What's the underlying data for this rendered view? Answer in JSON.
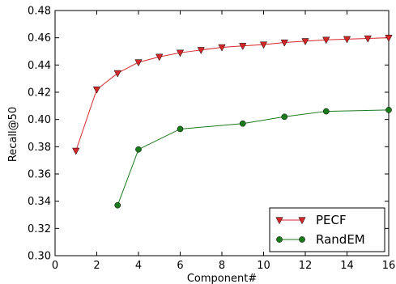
{
  "chart_data": {
    "type": "line",
    "title": "",
    "xlabel": "Component#",
    "ylabel": "Recall@50",
    "xlim": [
      0,
      16
    ],
    "ylim": [
      0.3,
      0.48
    ],
    "xticks": [
      0,
      2,
      4,
      6,
      8,
      10,
      12,
      14,
      16
    ],
    "yticks": [
      0.3,
      0.32,
      0.34,
      0.36,
      0.38,
      0.4,
      0.42,
      0.44,
      0.46,
      0.48
    ],
    "xtick_labels": [
      "0",
      "2",
      "4",
      "6",
      "8",
      "10",
      "12",
      "14",
      "16"
    ],
    "ytick_labels": [
      "0.30",
      "0.32",
      "0.34",
      "0.36",
      "0.38",
      "0.40",
      "0.42",
      "0.44",
      "0.46",
      "0.48"
    ],
    "grid": false,
    "legend_position": "bottom-right",
    "series": [
      {
        "name": "PECF",
        "color": "#d62728",
        "marker": "triangle-down",
        "x": [
          1,
          2,
          3,
          4,
          5,
          6,
          7,
          8,
          9,
          10,
          11,
          12,
          13,
          14,
          15,
          16
        ],
        "y": [
          0.377,
          0.422,
          0.434,
          0.442,
          0.446,
          0.449,
          0.451,
          0.453,
          0.454,
          0.455,
          0.4565,
          0.4575,
          0.4585,
          0.459,
          0.4595,
          0.46
        ]
      },
      {
        "name": "RandEM",
        "color": "#1a7a1a",
        "marker": "circle",
        "x": [
          3,
          4,
          6,
          9,
          11,
          13,
          16
        ],
        "y": [
          0.337,
          0.378,
          0.393,
          0.397,
          0.402,
          0.406,
          0.407
        ]
      }
    ]
  }
}
